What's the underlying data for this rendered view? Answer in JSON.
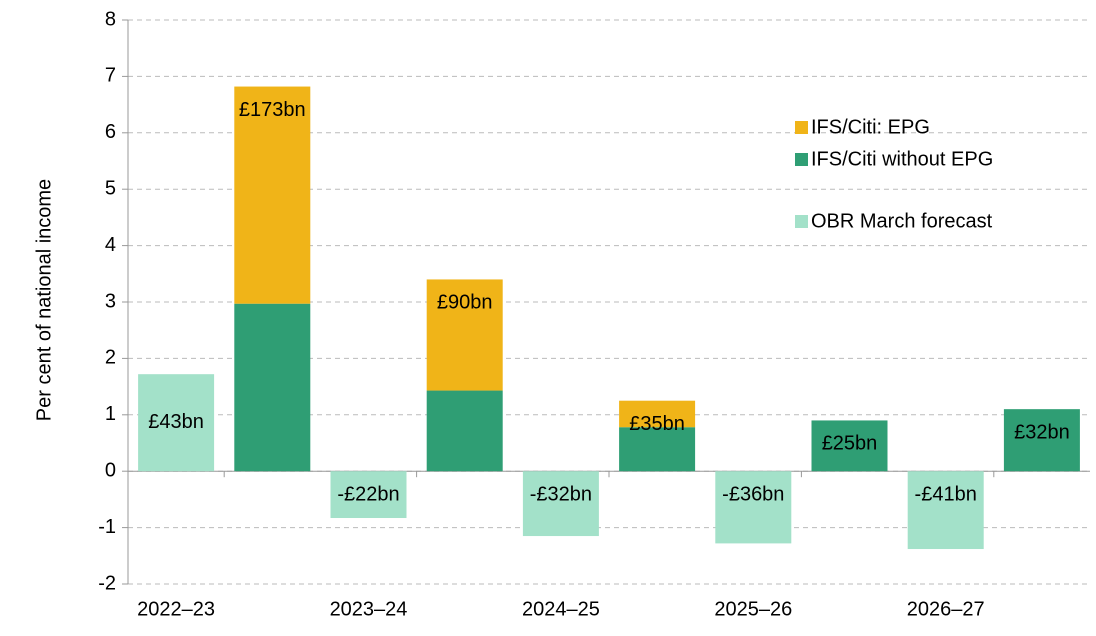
{
  "chart_data": {
    "type": "stacked_bar",
    "y_label": "Per cent of national income",
    "categories": [
      "2022–23",
      null,
      "2023–24",
      null,
      "2024–25",
      null,
      "2025–26",
      null,
      "2026–27",
      null
    ],
    "series": [
      {
        "name": "OBR March forecast",
        "color": "#a3e1c9",
        "values": [
          1.72,
          null,
          -0.83,
          null,
          -1.15,
          null,
          -1.28,
          null,
          -1.38,
          null
        ],
        "value_labels": [
          "£43bn",
          null,
          "-£22bn",
          null,
          "-£32bn",
          null,
          "-£36bn",
          null,
          "-£41bn",
          null
        ]
      },
      {
        "name": "IFS/Citi without EPG",
        "color": "#2f9e74",
        "values": [
          null,
          2.97,
          null,
          1.43,
          null,
          0.78,
          null,
          0.9,
          null,
          1.1
        ],
        "value_labels": [
          null,
          null,
          null,
          null,
          null,
          null,
          null,
          "£25bn",
          null,
          "£32bn"
        ]
      },
      {
        "name": "IFS/Citi: EPG",
        "color": "#f0b418",
        "values": [
          null,
          3.85,
          null,
          1.97,
          null,
          0.47,
          null,
          null,
          null,
          null
        ],
        "value_labels": [
          null,
          "£173bn",
          null,
          "£90bn",
          null,
          "£35bn",
          null,
          null,
          null,
          null
        ]
      }
    ],
    "legend_order": [
      2,
      1,
      0
    ],
    "ylim": [
      -2,
      8
    ],
    "yticks": [
      -2,
      -1,
      0,
      1,
      2,
      3,
      4,
      5,
      6,
      7,
      8
    ],
    "grid": true
  }
}
